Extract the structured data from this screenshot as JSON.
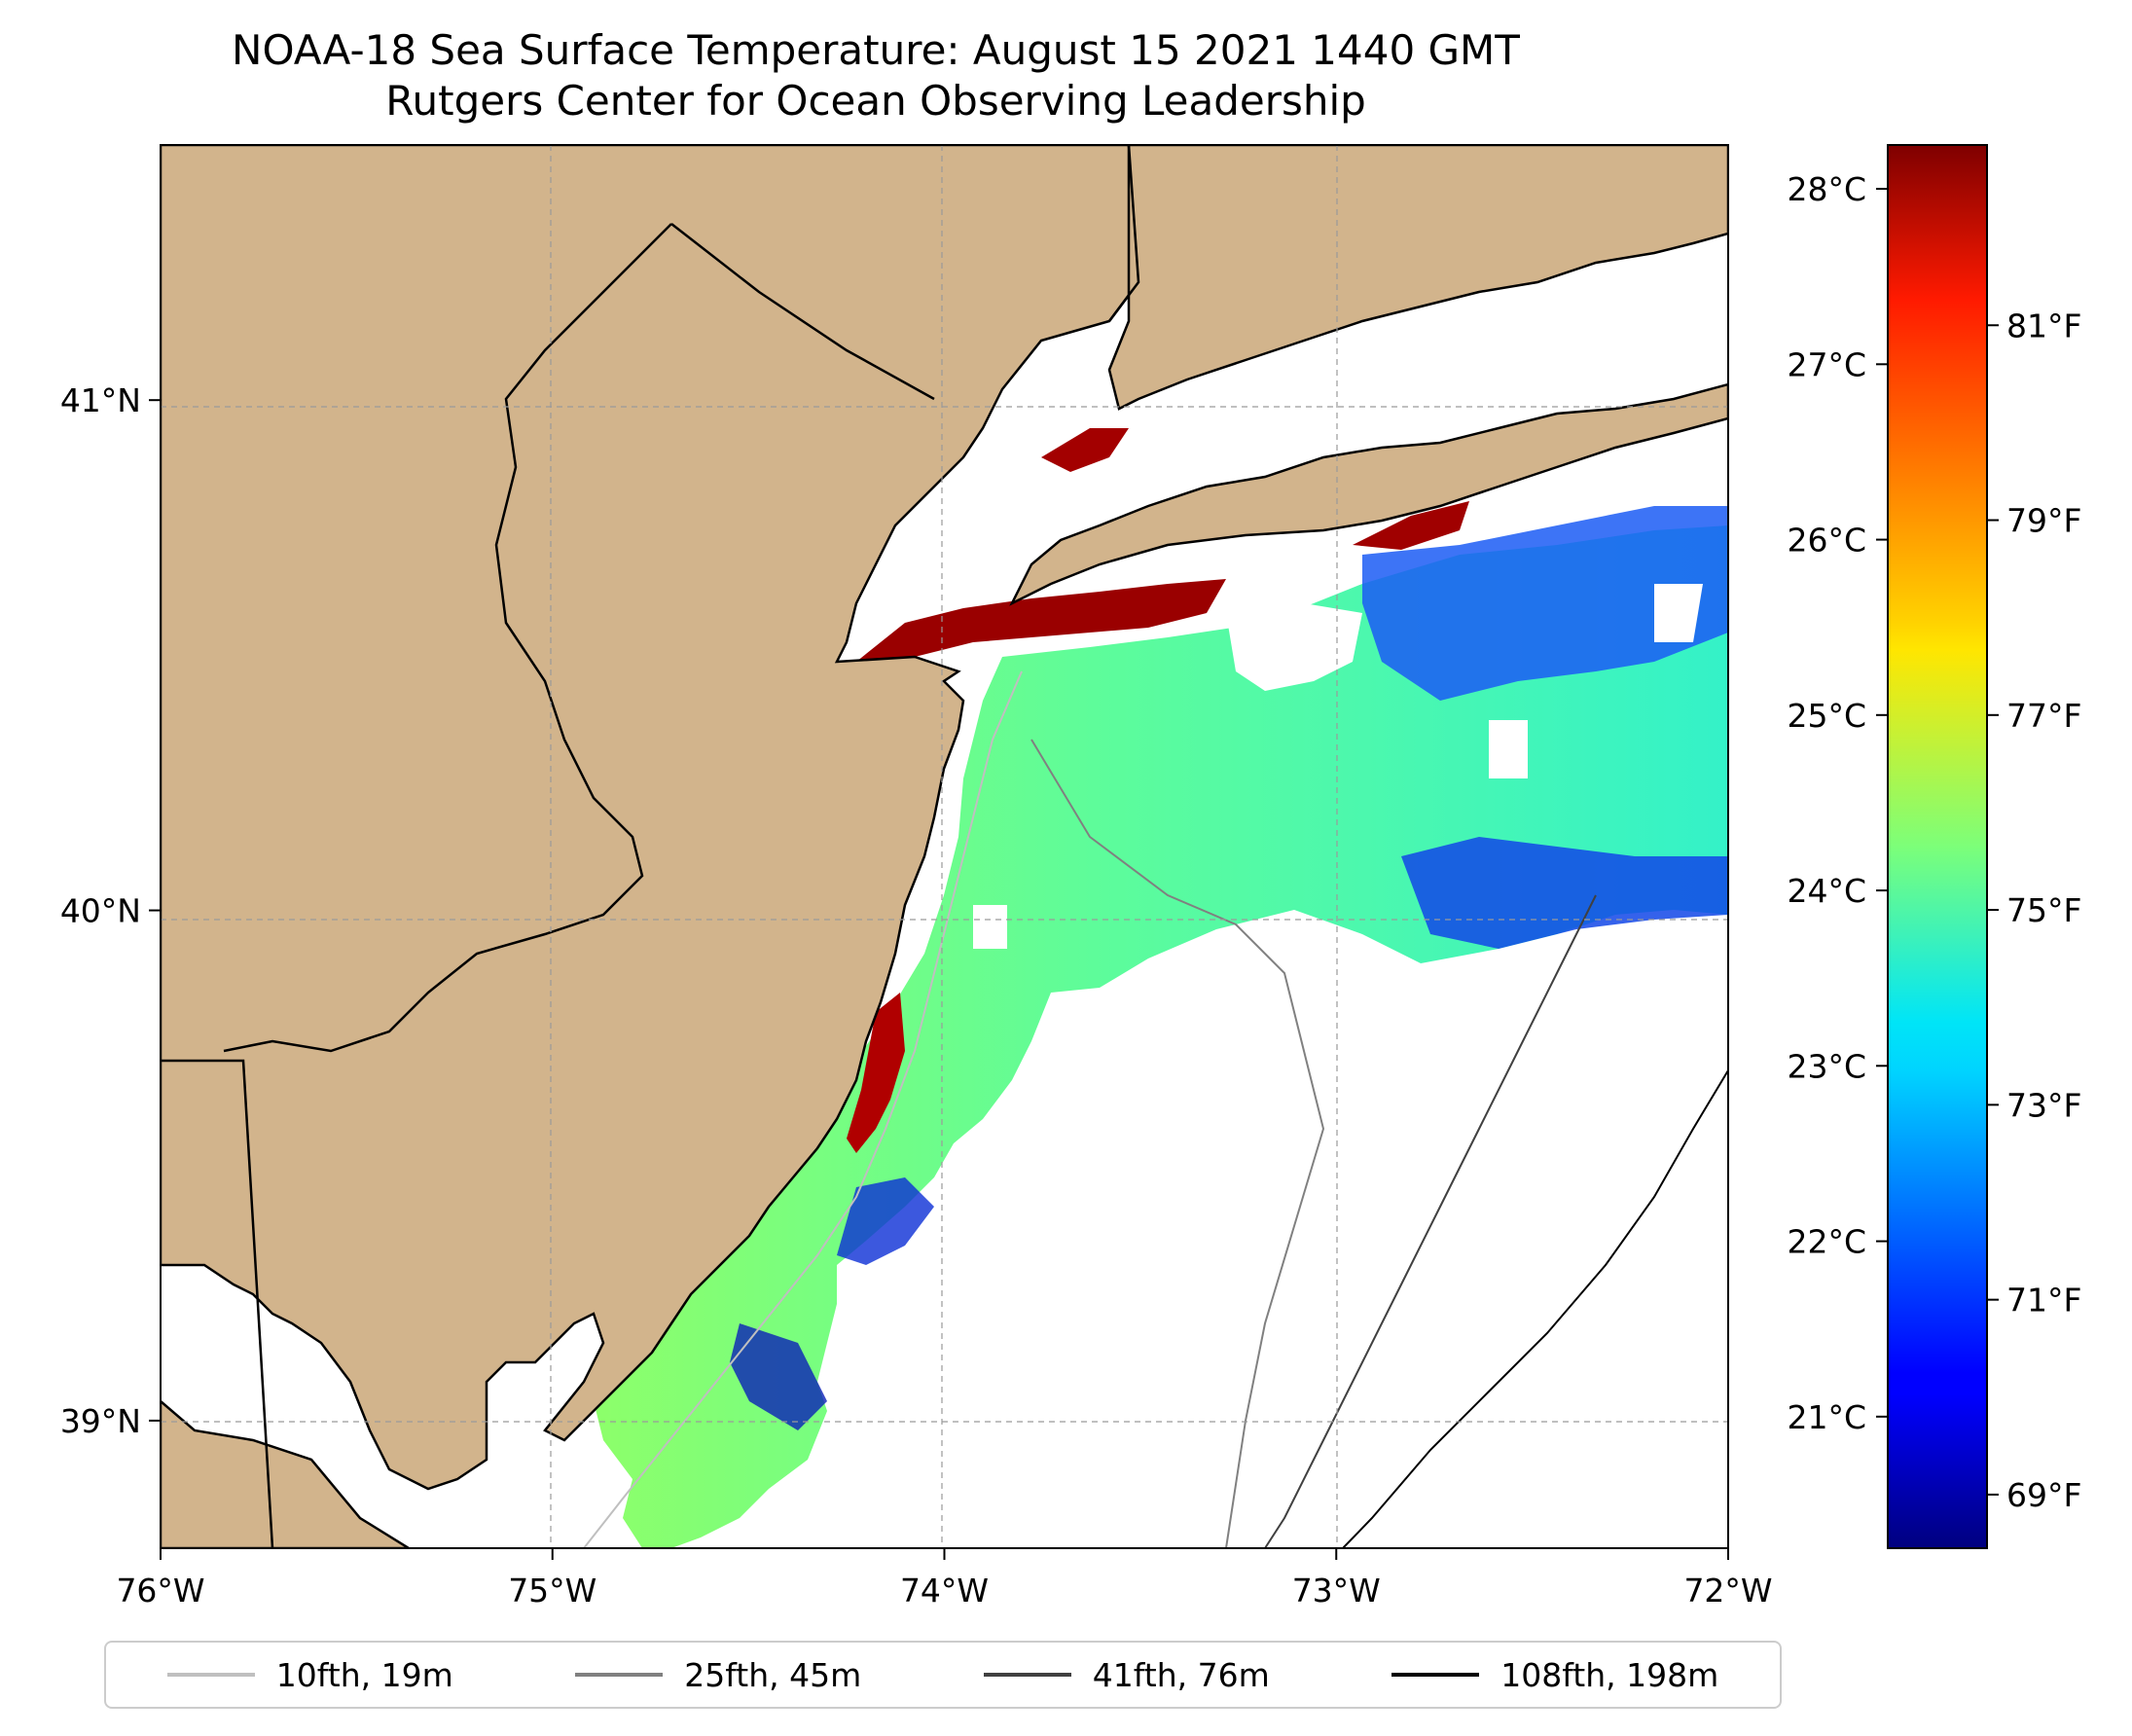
{
  "title": {
    "line1": "NOAA-18 Sea Surface Temperature: August 15 2021 1440 GMT",
    "line2": "Rutgers Center for Ocean Observing Leadership"
  },
  "map": {
    "lon_range": [
      -76,
      -72
    ],
    "lat_range": [
      38.75,
      41.5
    ],
    "x_ticks": [
      {
        "lon": -76,
        "label": "76°W"
      },
      {
        "lon": -75,
        "label": "75°W"
      },
      {
        "lon": -74,
        "label": "74°W"
      },
      {
        "lon": -73,
        "label": "73°W"
      },
      {
        "lon": -72,
        "label": "72°W"
      }
    ],
    "y_ticks": [
      {
        "lat": 41,
        "label": "41°N"
      },
      {
        "lat": 40,
        "label": "40°N"
      },
      {
        "lat": 39,
        "label": "39°N"
      }
    ],
    "gridlines": true,
    "land_color": "#d2b48c",
    "no_data_color": "#ffffff"
  },
  "colorbar": {
    "colormap": "jet",
    "range_c": [
      20.25,
      28.25
    ],
    "celsius_ticks": [
      {
        "value": 21,
        "label": "21°C"
      },
      {
        "value": 22,
        "label": "22°C"
      },
      {
        "value": 23,
        "label": "23°C"
      },
      {
        "value": 24,
        "label": "24°C"
      },
      {
        "value": 25,
        "label": "25°C"
      },
      {
        "value": 26,
        "label": "26°C"
      },
      {
        "value": 27,
        "label": "27°C"
      },
      {
        "value": 28,
        "label": "28°C"
      }
    ],
    "fahrenheit_ticks": [
      {
        "value": 69,
        "label": "69°F"
      },
      {
        "value": 71,
        "label": "71°F"
      },
      {
        "value": 73,
        "label": "73°F"
      },
      {
        "value": 75,
        "label": "75°F"
      },
      {
        "value": 77,
        "label": "77°F"
      },
      {
        "value": 79,
        "label": "79°F"
      },
      {
        "value": 81,
        "label": "81°F"
      }
    ]
  },
  "legend": [
    {
      "label": "10fth, 19m",
      "color": "#bfbfbf"
    },
    {
      "label": "25fth, 45m",
      "color": "#808080"
    },
    {
      "label": "41fth, 76m",
      "color": "#404040"
    },
    {
      "label": "108fth, 198m",
      "color": "#000000"
    }
  ]
}
